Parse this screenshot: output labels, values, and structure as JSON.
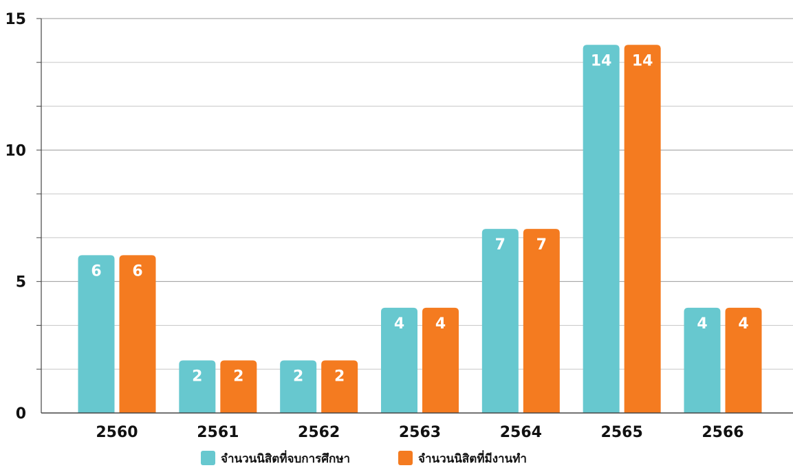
{
  "chart_data": {
    "type": "bar",
    "title": "",
    "xlabel": "",
    "ylabel": "",
    "categories": [
      "2560",
      "2561",
      "2562",
      "2563",
      "2564",
      "2565",
      "2566"
    ],
    "series": [
      {
        "name": "จำนวนนิสิตที่จบการศึกษา",
        "color": "#67c8cf",
        "values": [
          6,
          2,
          2,
          4,
          7,
          14,
          4
        ]
      },
      {
        "name": "จำนวนนิสิตที่มีงานทำ",
        "color": "#f47b20",
        "values": [
          6,
          2,
          2,
          4,
          7,
          14,
          4
        ]
      }
    ],
    "ylim": [
      0,
      15
    ],
    "yticks": [
      0,
      5,
      10,
      15
    ],
    "minor_tick_step": 1.666667,
    "grid": true,
    "legend_position": "bottom-center",
    "data_labels": true
  }
}
